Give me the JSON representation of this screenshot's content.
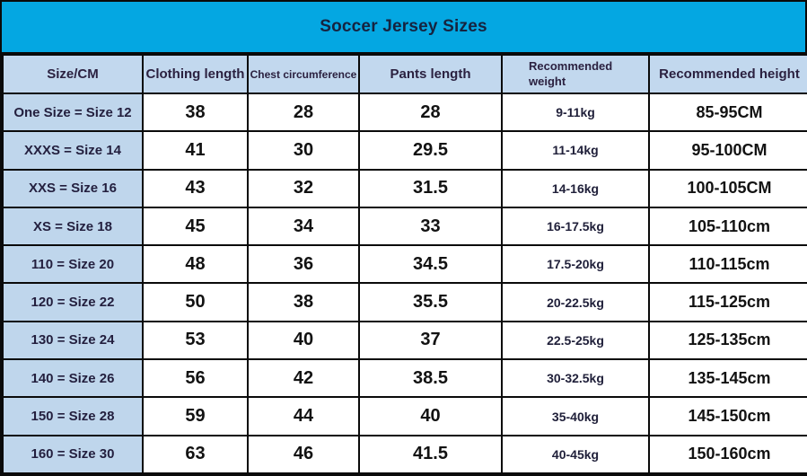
{
  "colors": {
    "title_bg": "#04A7E2",
    "header_bg": "#C2D8EE",
    "label_bg": "#BFD6EC",
    "border": "#0A0A0A",
    "title_text": "#16233F",
    "header_text": "#2B2140",
    "label_text": "#231F3E",
    "number_text": "#121212"
  },
  "chart_data": {
    "type": "table",
    "title": "Soccer Jersey Sizes",
    "columns": [
      "Size/CM",
      "Clothing length",
      "Chest circumference",
      "Pants length",
      "Recommended weight",
      "Recommended height"
    ],
    "rows": [
      {
        "size": "One Size = Size 12",
        "clothing_length": "38",
        "chest": "28",
        "pants": "28",
        "weight": "9-11kg",
        "height": "85-95CM"
      },
      {
        "size": "XXXS = Size 14",
        "clothing_length": "41",
        "chest": "30",
        "pants": "29.5",
        "weight": "11-14kg",
        "height": "95-100CM"
      },
      {
        "size": "XXS = Size 16",
        "clothing_length": "43",
        "chest": "32",
        "pants": "31.5",
        "weight": "14-16kg",
        "height": "100-105CM"
      },
      {
        "size": "XS = Size 18",
        "clothing_length": "45",
        "chest": "34",
        "pants": "33",
        "weight": "16-17.5kg",
        "height": "105-110cm"
      },
      {
        "size": "110 = Size 20",
        "clothing_length": "48",
        "chest": "36",
        "pants": "34.5",
        "weight": "17.5-20kg",
        "height": "110-115cm"
      },
      {
        "size": "120 = Size 22",
        "clothing_length": "50",
        "chest": "38",
        "pants": "35.5",
        "weight": "20-22.5kg",
        "height": "115-125cm"
      },
      {
        "size": "130 = Size 24",
        "clothing_length": "53",
        "chest": "40",
        "pants": "37",
        "weight": "22.5-25kg",
        "height": "125-135cm"
      },
      {
        "size": "140 = Size 26",
        "clothing_length": "56",
        "chest": "42",
        "pants": "38.5",
        "weight": "30-32.5kg",
        "height": "135-145cm"
      },
      {
        "size": "150 = Size 28",
        "clothing_length": "59",
        "chest": "44",
        "pants": "40",
        "weight": "35-40kg",
        "height": "145-150cm"
      },
      {
        "size": "160 = Size 30",
        "clothing_length": "63",
        "chest": "46",
        "pants": "41.5",
        "weight": "40-45kg",
        "height": "150-160cm"
      }
    ]
  }
}
